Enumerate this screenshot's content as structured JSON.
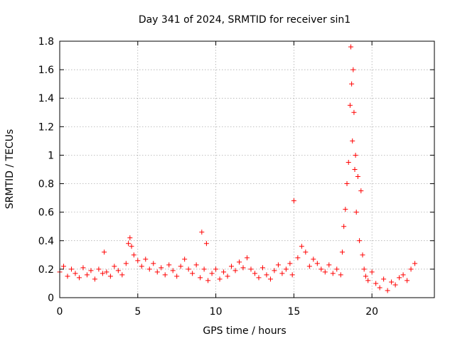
{
  "chart_data": {
    "type": "scatter",
    "title": "Day 341 of 2024, SRMTID for receiver sin1",
    "xlabel": "GPS time / hours",
    "ylabel": "SRMTID / TECUs",
    "xlim": [
      0,
      24
    ],
    "ylim": [
      0,
      1.8
    ],
    "xticks": [
      0,
      5,
      10,
      15,
      20
    ],
    "xtick_labels": [
      "0",
      "5",
      "10",
      "15",
      "20"
    ],
    "yticks": [
      0,
      0.2,
      0.4,
      0.6,
      0.8,
      1.0,
      1.2,
      1.4,
      1.6,
      1.8
    ],
    "ytick_labels": [
      "0",
      "0.2",
      "0.4",
      "0.6",
      "0.8",
      "1",
      "1.2",
      "1.4",
      "1.6",
      "1.8"
    ],
    "grid": true,
    "marker": "plus",
    "color": "#ff0000",
    "series": [
      {
        "name": "sin1",
        "x": [
          0.0,
          0.25,
          0.5,
          0.75,
          1.0,
          1.25,
          1.5,
          1.75,
          2.0,
          2.25,
          2.5,
          2.75,
          2.85,
          3.0,
          3.25,
          3.5,
          3.75,
          4.0,
          4.25,
          4.4,
          4.5,
          4.6,
          4.75,
          5.0,
          5.25,
          5.5,
          5.75,
          6.0,
          6.25,
          6.5,
          6.75,
          7.0,
          7.25,
          7.5,
          7.75,
          8.0,
          8.25,
          8.5,
          8.75,
          9.0,
          9.1,
          9.25,
          9.4,
          9.5,
          9.75,
          10.0,
          10.25,
          10.5,
          10.75,
          11.0,
          11.25,
          11.5,
          11.75,
          12.0,
          12.25,
          12.5,
          12.75,
          13.0,
          13.25,
          13.5,
          13.75,
          14.0,
          14.25,
          14.5,
          14.75,
          14.9,
          15.0,
          15.25,
          15.5,
          15.75,
          16.0,
          16.25,
          16.5,
          16.75,
          17.0,
          17.25,
          17.5,
          17.75,
          18.0,
          18.1,
          18.2,
          18.3,
          18.4,
          18.5,
          18.6,
          18.65,
          18.7,
          18.75,
          18.8,
          18.85,
          18.9,
          18.95,
          19.0,
          19.1,
          19.2,
          19.3,
          19.4,
          19.5,
          19.6,
          19.75,
          20.0,
          20.25,
          20.5,
          20.75,
          21.0,
          21.25,
          21.5,
          21.75,
          22.0,
          22.25,
          22.5,
          22.75
        ],
        "y": [
          0.18,
          0.22,
          0.15,
          0.2,
          0.17,
          0.14,
          0.21,
          0.16,
          0.19,
          0.13,
          0.2,
          0.17,
          0.32,
          0.18,
          0.15,
          0.22,
          0.19,
          0.16,
          0.24,
          0.38,
          0.42,
          0.36,
          0.3,
          0.26,
          0.22,
          0.27,
          0.2,
          0.24,
          0.18,
          0.21,
          0.16,
          0.23,
          0.19,
          0.15,
          0.22,
          0.27,
          0.2,
          0.17,
          0.23,
          0.14,
          0.46,
          0.2,
          0.38,
          0.12,
          0.17,
          0.2,
          0.13,
          0.18,
          0.15,
          0.22,
          0.19,
          0.25,
          0.21,
          0.28,
          0.2,
          0.17,
          0.14,
          0.21,
          0.16,
          0.13,
          0.19,
          0.23,
          0.17,
          0.2,
          0.24,
          0.16,
          0.68,
          0.28,
          0.36,
          0.32,
          0.22,
          0.27,
          0.24,
          0.2,
          0.18,
          0.23,
          0.17,
          0.2,
          0.16,
          0.32,
          0.5,
          0.62,
          0.8,
          0.95,
          1.35,
          1.76,
          1.5,
          1.1,
          1.6,
          1.3,
          0.9,
          1.0,
          0.6,
          0.85,
          0.4,
          0.75,
          0.3,
          0.2,
          0.15,
          0.12,
          0.18,
          0.1,
          0.07,
          0.13,
          0.05,
          0.11,
          0.09,
          0.14,
          0.16,
          0.12,
          0.2,
          0.24
        ]
      }
    ]
  }
}
